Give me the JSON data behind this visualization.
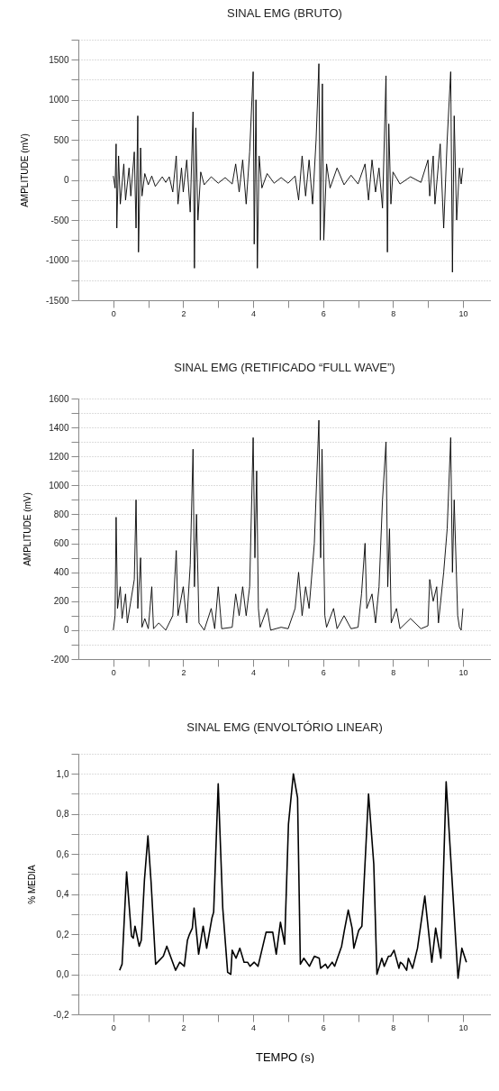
{
  "chart_data": [
    {
      "type": "line",
      "title": "SINAL EMG (BRUTO)",
      "ylabel": "AMPLITUDE (mV)",
      "xlim": [
        -1,
        10.8
      ],
      "ylim": [
        -1500,
        1750
      ],
      "xticks": [
        0,
        {
          "value": 1,
          "label": null
        },
        2,
        {
          "value": 3,
          "label": null
        },
        4,
        {
          "value": 5,
          "label": null
        },
        6,
        {
          "value": 7,
          "label": null
        },
        8,
        {
          "value": 9,
          "label": null
        },
        10
      ],
      "yticks": [
        -1500,
        {
          "value": -1250,
          "label": null
        },
        -1000,
        {
          "value": -750,
          "label": null
        },
        -500,
        {
          "value": -250,
          "label": null
        },
        0,
        {
          "value": 250,
          "label": null
        },
        500,
        {
          "value": 750,
          "label": null
        },
        1000,
        {
          "value": 1250,
          "label": null
        },
        1500,
        {
          "value": 1750,
          "label": null
        }
      ],
      "grid": "y",
      "x": [
        0,
        0.05,
        0.08,
        0.1,
        0.15,
        0.2,
        0.3,
        0.35,
        0.45,
        0.5,
        0.6,
        0.65,
        0.7,
        0.72,
        0.78,
        0.82,
        0.9,
        1.0,
        1.1,
        1.2,
        1.4,
        1.5,
        1.6,
        1.7,
        1.8,
        1.85,
        1.95,
        2.0,
        2.1,
        2.2,
        2.28,
        2.32,
        2.36,
        2.42,
        2.5,
        2.6,
        2.8,
        3.0,
        3.2,
        3.4,
        3.5,
        3.6,
        3.7,
        3.8,
        3.9,
        4.0,
        4.03,
        4.08,
        4.12,
        4.17,
        4.25,
        4.4,
        4.6,
        4.8,
        5.0,
        5.2,
        5.3,
        5.4,
        5.5,
        5.6,
        5.7,
        5.8,
        5.88,
        5.92,
        5.98,
        6.02,
        6.1,
        6.2,
        6.4,
        6.6,
        6.8,
        7.0,
        7.2,
        7.3,
        7.4,
        7.5,
        7.6,
        7.7,
        7.8,
        7.84,
        7.88,
        7.94,
        8.0,
        8.2,
        8.5,
        8.8,
        9.0,
        9.05,
        9.15,
        9.2,
        9.35,
        9.45,
        9.55,
        9.65,
        9.7,
        9.75,
        9.82,
        9.9,
        9.95,
        10.0
      ],
      "series": [
        {
          "color": "#000000",
          "values": [
            50,
            -100,
            450,
            -600,
            300,
            -300,
            200,
            -250,
            150,
            -200,
            350,
            -600,
            800,
            -900,
            400,
            -200,
            80,
            -60,
            50,
            -80,
            40,
            -30,
            40,
            -150,
            300,
            -300,
            150,
            -150,
            250,
            -400,
            850,
            -1100,
            650,
            -500,
            100,
            -60,
            40,
            -40,
            30,
            -50,
            200,
            -150,
            250,
            -300,
            350,
            1350,
            -800,
            1000,
            -1100,
            300,
            -100,
            80,
            -40,
            30,
            -40,
            50,
            -250,
            300,
            -200,
            250,
            -300,
            500,
            1450,
            -750,
            1200,
            -750,
            200,
            -100,
            150,
            -60,
            60,
            -50,
            200,
            -250,
            250,
            -150,
            150,
            -350,
            1300,
            -900,
            700,
            -300,
            100,
            -50,
            40,
            -30,
            250,
            -200,
            300,
            -300,
            450,
            -600,
            500,
            1350,
            -1150,
            800,
            -500,
            150,
            -50,
            150
          ]
        }
      ]
    },
    {
      "type": "line",
      "title": "SINAL EMG (RETIFICADO “FULL WAVE”)",
      "ylabel": "AMPLITUDE (mV)",
      "xlim": [
        -1,
        10.8
      ],
      "ylim": [
        -200,
        1600
      ],
      "xticks": [
        0,
        {
          "value": 1,
          "label": null
        },
        2,
        {
          "value": 3,
          "label": null
        },
        4,
        {
          "value": 5,
          "label": null
        },
        6,
        {
          "value": 7,
          "label": null
        },
        8,
        {
          "value": 9,
          "label": null
        },
        10
      ],
      "yticks": [
        -200,
        {
          "value": -100,
          "label": null
        },
        0,
        {
          "value": 100,
          "label": null
        },
        200,
        {
          "value": 300,
          "label": null
        },
        400,
        {
          "value": 500,
          "label": null
        },
        600,
        {
          "value": 700,
          "label": null
        },
        800,
        {
          "value": 900,
          "label": null
        },
        1000,
        {
          "value": 1100,
          "label": null
        },
        1200,
        {
          "value": 1300,
          "label": null
        },
        1400,
        {
          "value": 1500,
          "label": null
        },
        1600
      ],
      "grid": "y",
      "x": [
        0.0,
        0.05,
        0.08,
        0.12,
        0.2,
        0.25,
        0.35,
        0.4,
        0.5,
        0.6,
        0.65,
        0.7,
        0.78,
        0.82,
        0.9,
        1.0,
        1.1,
        1.15,
        1.3,
        1.5,
        1.7,
        1.8,
        1.85,
        2.0,
        2.1,
        2.2,
        2.28,
        2.32,
        2.38,
        2.45,
        2.6,
        2.8,
        2.9,
        3.0,
        3.1,
        3.4,
        3.5,
        3.6,
        3.7,
        3.8,
        3.9,
        4.0,
        4.05,
        4.1,
        4.15,
        4.2,
        4.4,
        4.5,
        4.8,
        5.0,
        5.2,
        5.3,
        5.4,
        5.5,
        5.6,
        5.75,
        5.88,
        5.93,
        5.97,
        6.05,
        6.1,
        6.3,
        6.4,
        6.6,
        6.8,
        7.0,
        7.1,
        7.2,
        7.25,
        7.4,
        7.5,
        7.6,
        7.7,
        7.8,
        7.85,
        7.9,
        7.95,
        8.1,
        8.2,
        8.5,
        8.8,
        9.0,
        9.05,
        9.15,
        9.25,
        9.3,
        9.45,
        9.55,
        9.65,
        9.7,
        9.75,
        9.85,
        9.9,
        9.95,
        10.0
      ],
      "series": [
        {
          "color": "#000000",
          "values": [
            0,
            100,
            780,
            150,
            300,
            80,
            250,
            50,
            200,
            350,
            900,
            150,
            500,
            20,
            80,
            10,
            300,
            10,
            50,
            0,
            100,
            550,
            100,
            300,
            50,
            450,
            1250,
            300,
            800,
            50,
            0,
            150,
            10,
            300,
            10,
            20,
            250,
            100,
            300,
            100,
            300,
            1330,
            500,
            1100,
            150,
            20,
            150,
            0,
            20,
            10,
            150,
            400,
            100,
            300,
            150,
            600,
            1450,
            500,
            1250,
            100,
            20,
            150,
            10,
            100,
            10,
            20,
            250,
            600,
            150,
            250,
            50,
            300,
            900,
            1300,
            300,
            700,
            50,
            150,
            10,
            80,
            10,
            30,
            350,
            200,
            300,
            50,
            400,
            700,
            1330,
            400,
            900,
            100,
            20,
            0,
            150
          ]
        }
      ]
    },
    {
      "type": "line",
      "title": "SINAL EMG (ENVOLTÓRIO LINEAR)",
      "xlabel": "TEMPO (s)",
      "ylabel": "% MEDIA",
      "xlim": [
        -1,
        10.8
      ],
      "ylim": [
        -0.2,
        1.1
      ],
      "xticks": [
        0,
        {
          "value": 1,
          "label": null
        },
        2,
        {
          "value": 3,
          "label": null
        },
        4,
        {
          "value": 5,
          "label": null
        },
        6,
        {
          "value": 7,
          "label": null
        },
        8,
        {
          "value": 9,
          "label": null
        },
        10
      ],
      "yticks": [
        {
          "value": -0.2,
          "label": "-0,2"
        },
        {
          "value": -0.1,
          "label": null
        },
        {
          "value": 0,
          "label": "0,0"
        },
        {
          "value": 0.1,
          "label": null
        },
        {
          "value": 0.2,
          "label": "0,2"
        },
        {
          "value": 0.3,
          "label": null
        },
        {
          "value": 0.4,
          "label": "0,4"
        },
        {
          "value": 0.5,
          "label": null
        },
        {
          "value": 0.6,
          "label": "0,6"
        },
        {
          "value": 0.7,
          "label": null
        },
        {
          "value": 0.8,
          "label": "0,8"
        },
        {
          "value": 0.9,
          "label": null
        },
        {
          "value": 1,
          "label": "1,0"
        },
        {
          "value": 1.1,
          "label": null
        }
      ],
      "grid": "y",
      "x": [
        0.18,
        0.25,
        0.38,
        0.52,
        0.57,
        0.62,
        0.74,
        0.8,
        0.89,
        0.99,
        1.08,
        1.21,
        1.43,
        1.53,
        1.78,
        1.9,
        2.03,
        2.12,
        2.18,
        2.26,
        2.31,
        2.44,
        2.57,
        2.67,
        2.82,
        2.87,
        3.0,
        3.13,
        3.27,
        3.36,
        3.4,
        3.51,
        3.62,
        3.74,
        3.84,
        3.91,
        4.03,
        4.14,
        4.37,
        4.56,
        4.66,
        4.78,
        4.9,
        5.01,
        5.15,
        5.27,
        5.35,
        5.45,
        5.61,
        5.75,
        5.89,
        5.93,
        6.07,
        6.13,
        6.26,
        6.33,
        6.53,
        6.61,
        6.72,
        6.83,
        6.88,
        7.02,
        7.11,
        7.3,
        7.45,
        7.54,
        7.68,
        7.75,
        7.87,
        7.93,
        8.03,
        8.17,
        8.21,
        8.28,
        8.39,
        8.44,
        8.56,
        8.7,
        8.91,
        9.11,
        9.22,
        9.37,
        9.52,
        9.86,
        9.97,
        10.1
      ],
      "series": [
        {
          "color": "#000000",
          "values": [
            0.02,
            0.05,
            0.51,
            0.19,
            0.18,
            0.24,
            0.14,
            0.17,
            0.47,
            0.69,
            0.46,
            0.05,
            0.09,
            0.14,
            0.02,
            0.06,
            0.04,
            0.17,
            0.2,
            0.23,
            0.33,
            0.1,
            0.24,
            0.13,
            0.28,
            0.31,
            0.95,
            0.33,
            0.01,
            0.0,
            0.12,
            0.08,
            0.13,
            0.06,
            0.06,
            0.04,
            0.06,
            0.04,
            0.21,
            0.21,
            0.1,
            0.26,
            0.15,
            0.75,
            1.0,
            0.88,
            0.05,
            0.08,
            0.04,
            0.09,
            0.08,
            0.03,
            0.05,
            0.03,
            0.06,
            0.04,
            0.14,
            0.22,
            0.32,
            0.23,
            0.13,
            0.22,
            0.24,
            0.9,
            0.55,
            0.0,
            0.08,
            0.04,
            0.09,
            0.09,
            0.12,
            0.03,
            0.06,
            0.05,
            0.02,
            0.08,
            0.03,
            0.13,
            0.39,
            0.06,
            0.23,
            0.08,
            0.96,
            -0.02,
            0.13,
            0.06
          ]
        }
      ]
    }
  ]
}
